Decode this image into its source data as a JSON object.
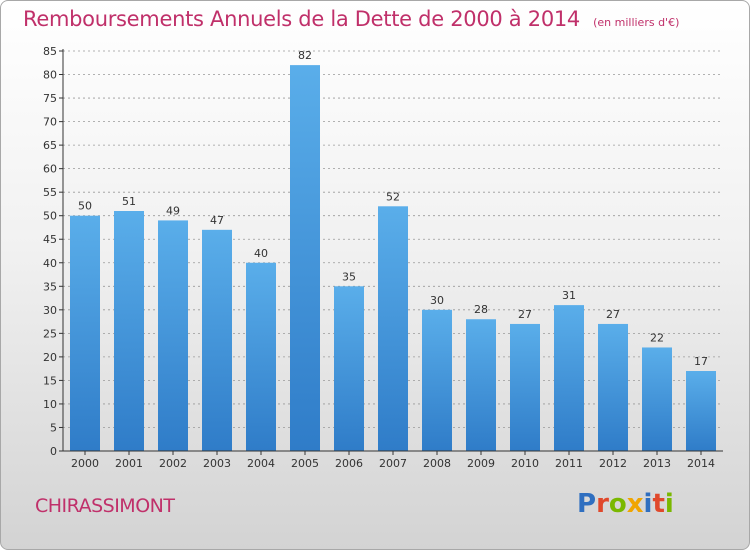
{
  "header": {
    "title": "Remboursements Annuels de la Dette de 2000 à 2014",
    "unit": "(en milliers d'€)"
  },
  "footer": {
    "commune": "CHIRASSIMONT",
    "logo": [
      "P",
      "r",
      "o",
      "x",
      "i",
      "t",
      "i"
    ],
    "logo_colors": [
      "#2f6fc0",
      "#e0482b",
      "#7ab800",
      "#f0a500",
      "#2f6fc0",
      "#e0482b",
      "#7ab800"
    ]
  },
  "colors": {
    "title": "#c0306a",
    "bar_light": "#5aaeea",
    "bar_dark": "#2f7cc8",
    "axis": "#333333",
    "grid": "#999999"
  },
  "chart_data": {
    "type": "bar",
    "title": "Remboursements Annuels de la Dette de 2000 à 2014",
    "subtitle": "(en milliers d'€)",
    "categories": [
      "2000",
      "2001",
      "2002",
      "2003",
      "2004",
      "2005",
      "2006",
      "2007",
      "2008",
      "2009",
      "2010",
      "2011",
      "2012",
      "2013",
      "2014"
    ],
    "values": [
      50,
      51,
      49,
      47,
      40,
      82,
      35,
      52,
      30,
      28,
      27,
      31,
      27,
      22,
      17
    ],
    "yticks": [
      0,
      5,
      10,
      15,
      20,
      25,
      30,
      35,
      40,
      45,
      50,
      55,
      60,
      65,
      70,
      75,
      80,
      85
    ],
    "ylim": [
      0,
      85
    ],
    "xlabel": "",
    "ylabel": "",
    "grid": true,
    "legend": "none"
  }
}
